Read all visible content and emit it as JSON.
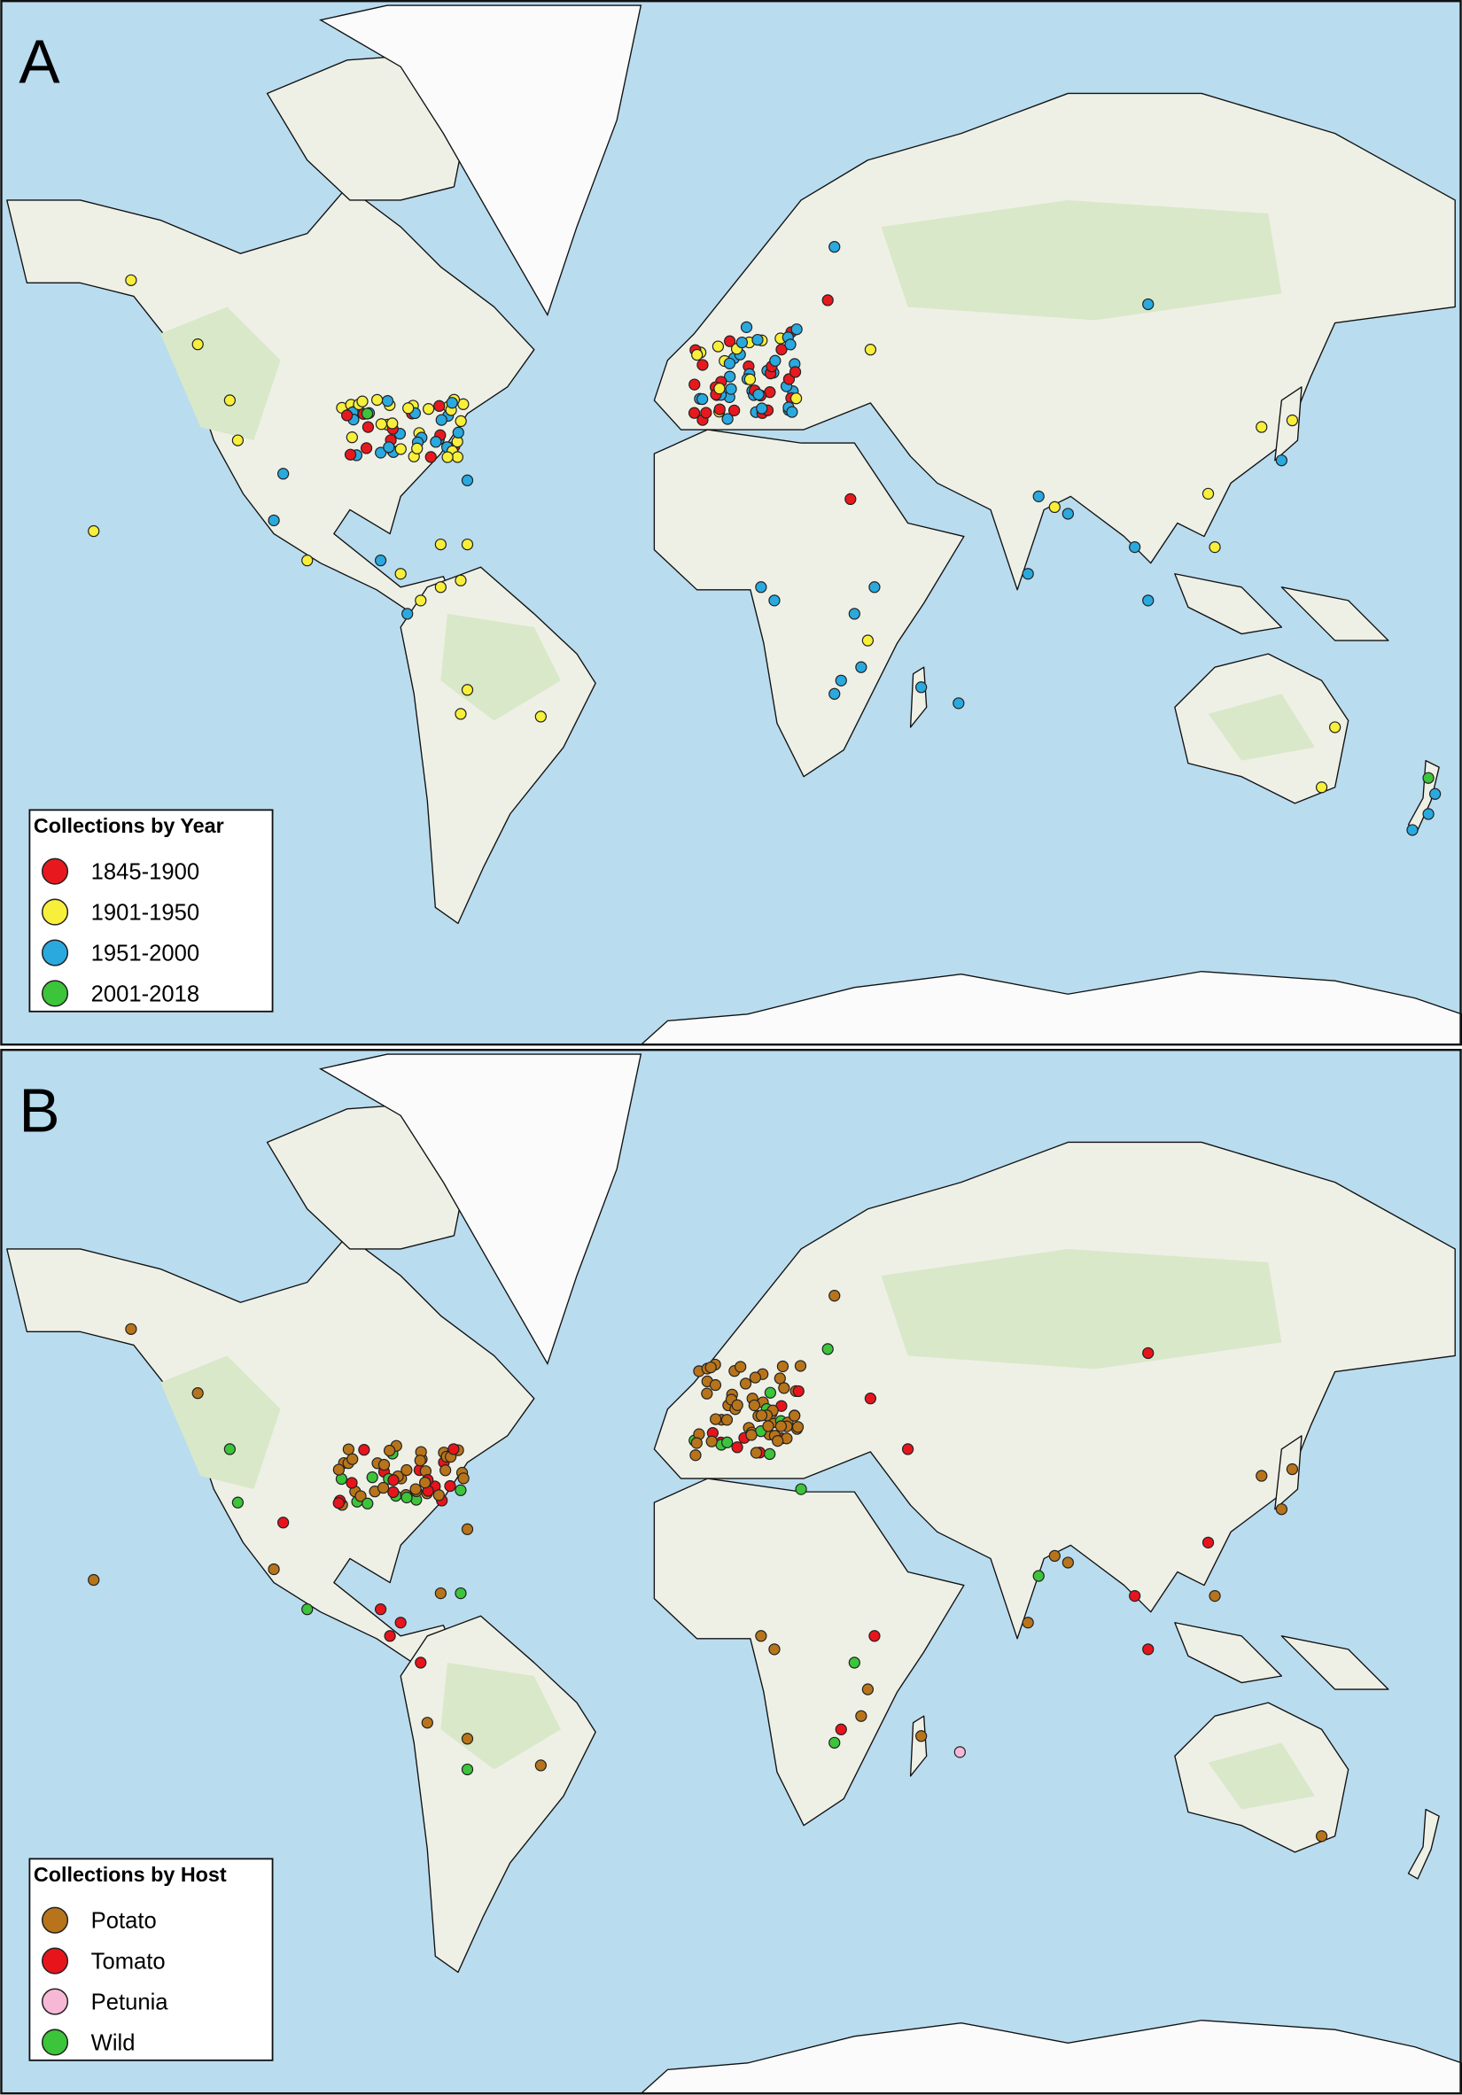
{
  "panels": [
    {
      "label": "A",
      "legend": {
        "title": "Collections by Year",
        "items": [
          {
            "label": "1845-1900",
            "color": "#e8191e"
          },
          {
            "label": "1901-1950",
            "color": "#f8ef3a"
          },
          {
            "label": "1951-2000",
            "color": "#2aa9df"
          },
          {
            "label": "2001-2018",
            "color": "#3cc43a"
          }
        ]
      }
    },
    {
      "label": "B",
      "legend": {
        "title": "Collections by Host",
        "items": [
          {
            "label": "Potato",
            "color": "#b8741a"
          },
          {
            "label": "Tomato",
            "color": "#e8141c"
          },
          {
            "label": "Petunia",
            "color": "#f7b8d6"
          },
          {
            "label": "Wild",
            "color": "#3cc43a"
          }
        ]
      }
    }
  ]
}
